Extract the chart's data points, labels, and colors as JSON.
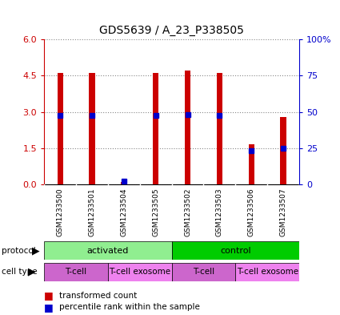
{
  "title": "GDS5639 / A_23_P338505",
  "samples": [
    "GSM1233500",
    "GSM1233501",
    "GSM1233504",
    "GSM1233505",
    "GSM1233502",
    "GSM1233503",
    "GSM1233506",
    "GSM1233507"
  ],
  "red_values": [
    4.6,
    4.6,
    0.1,
    4.6,
    4.7,
    4.6,
    1.65,
    2.8
  ],
  "blue_values": [
    2.85,
    2.85,
    0.12,
    2.85,
    2.9,
    2.85,
    1.4,
    1.5
  ],
  "ylim": [
    0,
    6
  ],
  "yticks_left": [
    0,
    1.5,
    3,
    4.5,
    6
  ],
  "yticks_right": [
    0,
    25,
    50,
    75,
    100
  ],
  "protocol_groups": [
    {
      "label": "activated",
      "start": 0,
      "end": 4,
      "color": "#90EE90"
    },
    {
      "label": "control",
      "start": 4,
      "end": 8,
      "color": "#00CC00"
    }
  ],
  "cell_type_groups": [
    {
      "label": "T-cell",
      "start": 0,
      "end": 2,
      "color": "#CC66CC"
    },
    {
      "label": "T-cell exosome",
      "start": 2,
      "end": 4,
      "color": "#EE82EE"
    },
    {
      "label": "T-cell",
      "start": 4,
      "end": 6,
      "color": "#CC66CC"
    },
    {
      "label": "T-cell exosome",
      "start": 6,
      "end": 8,
      "color": "#EE82EE"
    }
  ],
  "bar_color": "#CC0000",
  "blue_color": "#0000CC",
  "grid_color": "#888888",
  "left_axis_color": "#CC0000",
  "right_axis_color": "#0000CC",
  "bar_width": 0.18,
  "blue_marker_size": 5.0,
  "sample_bg_color": "#C8C8C8"
}
